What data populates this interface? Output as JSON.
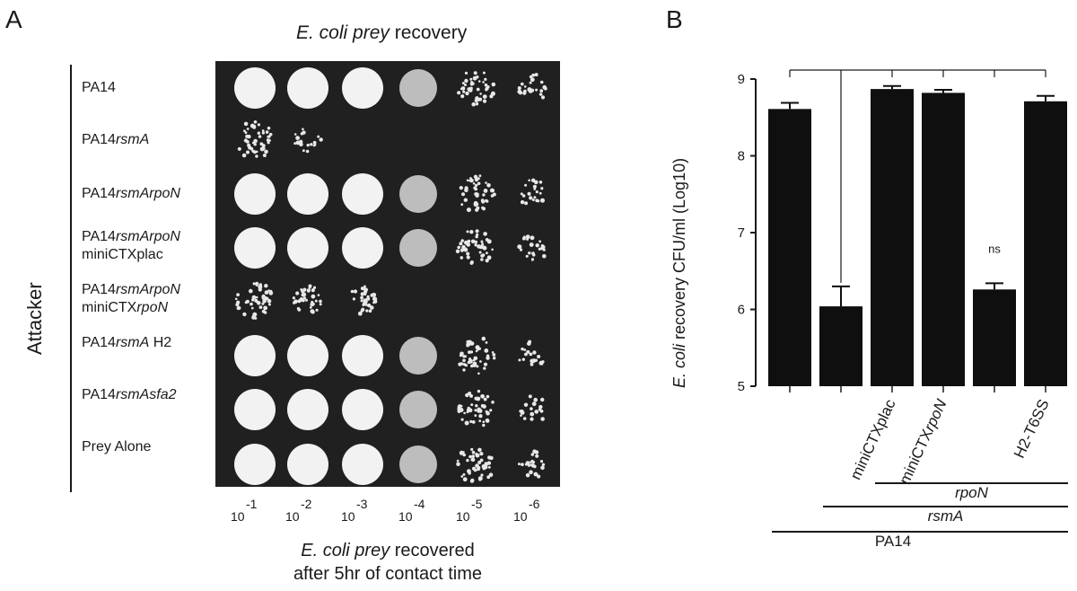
{
  "panel_a": {
    "letter": "A",
    "title_italic": "E. coli prey",
    "title_rest": " recovery",
    "y_title": "Attacker",
    "rows": [
      {
        "base": "PA14",
        "ital": "",
        "line2": "",
        "line2_ital": ""
      },
      {
        "base": "PA14",
        "ital": "rsmA",
        "line2": "",
        "line2_ital": ""
      },
      {
        "base": "PA14",
        "ital": "rsmArpoN",
        "line2": "",
        "line2_ital": ""
      },
      {
        "base": "PA14",
        "ital": "rsmArpoN",
        "line2": "miniCTXplac",
        "line2_ital": ""
      },
      {
        "base": "PA14",
        "ital": "rsmArpoN",
        "line2": "miniCTX",
        "line2_ital": "rpoN"
      },
      {
        "base": "PA14",
        "ital": "rsmA",
        "after": " H2",
        "line2": "",
        "line2_ital": ""
      },
      {
        "base": "PA14",
        "ital": "rsmAsfa2",
        "line2": "",
        "line2_ital": ""
      },
      {
        "base": "Prey Alone",
        "ital": "",
        "line2": "",
        "line2_ital": ""
      }
    ],
    "dilutions": [
      {
        "base": "10",
        "exp": "-1"
      },
      {
        "base": "10",
        "exp": "-2"
      },
      {
        "base": "10",
        "exp": "-3"
      },
      {
        "base": "10",
        "exp": "-4"
      },
      {
        "base": "10",
        "exp": "-5"
      },
      {
        "base": "10",
        "exp": "-6"
      }
    ],
    "x_title_italic": "E. coli prey",
    "x_title_rest": " recovered",
    "x_title_line2": "after 5hr of contact time",
    "spot_growth": [
      [
        3,
        3,
        3,
        2,
        1,
        0.5
      ],
      [
        1,
        0.4,
        0,
        0,
        0,
        0
      ],
      [
        3,
        3,
        3,
        2,
        1,
        0.5
      ],
      [
        3,
        3,
        3,
        2,
        1,
        0.5
      ],
      [
        1,
        0.8,
        0.8,
        0,
        0,
        0
      ],
      [
        3,
        3,
        3,
        2,
        1,
        0.4
      ],
      [
        3,
        3,
        3,
        2,
        1,
        0.4
      ],
      [
        3,
        3,
        3,
        2,
        1,
        0.5
      ]
    ]
  },
  "chart_data": {
    "type": "bar",
    "panel_letter": "B",
    "ylabel_italic": "E. coli",
    "ylabel_rest": " recovery CFU/ml (Log10)",
    "ylim": [
      5,
      9
    ],
    "yticks": [
      5,
      6,
      7,
      8,
      9
    ],
    "categories": [
      "",
      "",
      "miniCTXplac",
      "miniCTXrpoN",
      "",
      "H2-T6SS"
    ],
    "category_italic_suffix": [
      "",
      "",
      "",
      "rpoN",
      "",
      ""
    ],
    "category_base": [
      "",
      "",
      "miniCTXplac",
      "miniCTX",
      "",
      "H2-T6SS"
    ],
    "values": [
      8.61,
      6.04,
      8.87,
      8.82,
      6.26,
      8.71
    ],
    "errors": [
      0.08,
      0.26,
      0.04,
      0.04,
      0.08,
      0.07
    ],
    "annotations": [
      {
        "bar_index": 4,
        "text": "ns"
      }
    ],
    "groups": [
      {
        "label": "rpoN",
        "italic": true,
        "from": 2,
        "to": 5
      },
      {
        "label": "rsmA",
        "italic": true,
        "from": 1,
        "to": 5
      },
      {
        "label": "PA14",
        "italic": false,
        "from": 0,
        "to": 5
      }
    ]
  }
}
